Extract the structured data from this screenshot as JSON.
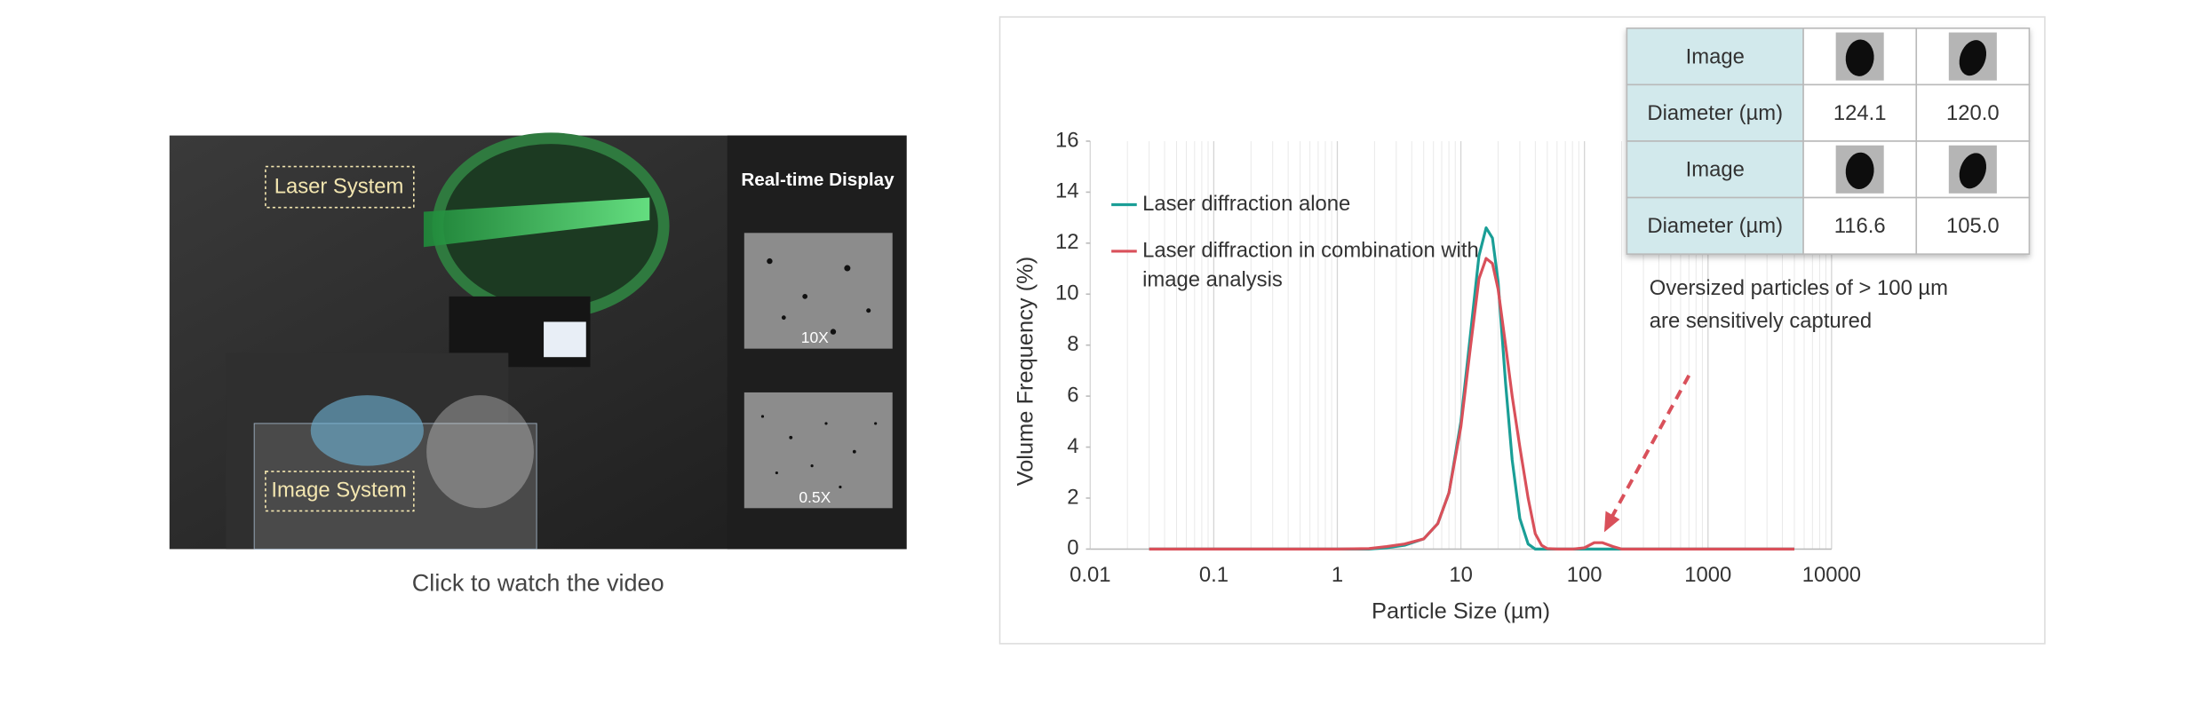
{
  "video": {
    "laser": "Laser System",
    "image": "Image System",
    "display": "Real-time Display",
    "mag_a": "10X",
    "mag_b": "0.5X",
    "caption": "Click to watch the video"
  },
  "table": {
    "rows": [
      [
        "Image"
      ],
      [
        "Diameter (µm)",
        "124.1",
        "120.0"
      ],
      [
        "Image"
      ],
      [
        "Diameter (µm)",
        "116.6",
        "105.0"
      ]
    ]
  },
  "chart_data": {
    "type": "line",
    "x_label": "Particle Size (µm)",
    "y_label": "Volume Frequency (%)",
    "annotation": [
      "Oversized particles of > 100 µm",
      "are sensitively captured"
    ],
    "xscale": "log",
    "grid": "x",
    "xlim": [
      0.01,
      10000
    ],
    "xticks": [
      0.01,
      0.1,
      1,
      10,
      100,
      1000,
      10000
    ],
    "ylim": [
      0,
      16
    ],
    "yticks": [
      0,
      2,
      4,
      6,
      8,
      10,
      12,
      14,
      16
    ],
    "x": [
      0.03,
      0.1,
      0.5,
      1,
      1.8,
      2.5,
      3.5,
      5,
      6.5,
      8,
      10,
      12,
      14,
      16,
      18,
      20,
      23,
      26,
      30,
      35,
      40,
      45,
      50,
      60,
      80,
      100,
      120,
      140,
      170,
      200,
      300,
      1000,
      5000
    ],
    "series": [
      {
        "name": "Laser diffraction alone",
        "color": "#1a9e96",
        "values": [
          0,
          0,
          0,
          0,
          0,
          0.05,
          0.15,
          0.4,
          1.0,
          2.2,
          5.0,
          8.5,
          11.5,
          12.6,
          12.2,
          10.5,
          6.5,
          3.5,
          1.2,
          0.2,
          0,
          0,
          0,
          0,
          0,
          0,
          0,
          0,
          0,
          0,
          0,
          0,
          0
        ]
      },
      {
        "name": "Laser diffraction in combination with image analysis",
        "color": "#d9505a",
        "values": [
          0,
          0,
          0,
          0,
          0.02,
          0.1,
          0.2,
          0.4,
          1.0,
          2.2,
          4.8,
          8.0,
          10.6,
          11.4,
          11.2,
          10.2,
          8.0,
          6.0,
          4.0,
          2.0,
          0.6,
          0.15,
          0.02,
          0,
          0,
          0.05,
          0.25,
          0.25,
          0.1,
          0,
          0,
          0,
          0
        ]
      }
    ]
  }
}
